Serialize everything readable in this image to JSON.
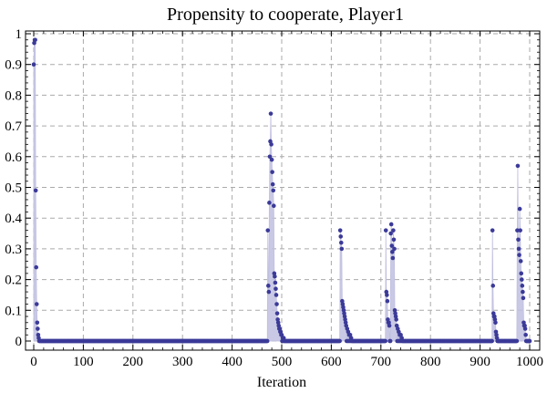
{
  "chart_data": {
    "type": "scatter",
    "title": "Propensity to cooperate, Player1",
    "xlabel": "Iteration",
    "ylabel": "",
    "xlim": [
      0,
      1000
    ],
    "ylim": [
      0,
      1
    ],
    "xticks": [
      0,
      100,
      200,
      300,
      400,
      500,
      600,
      700,
      800,
      900,
      1000
    ],
    "yticks": [
      0,
      0.1,
      0.2,
      0.3,
      0.4,
      0.5,
      0.6,
      0.7,
      0.8,
      0.9,
      1
    ],
    "grid": true,
    "filled_to_axis": true,
    "colors": {
      "points": "#3b3a98",
      "fill": "#bfbfe0",
      "grid": "#aaaaaa",
      "frame": "#000000"
    },
    "series": [
      {
        "points": [
          [
            0,
            0.9
          ],
          [
            1,
            0.97
          ],
          [
            2,
            0.98
          ],
          [
            3,
            0.98
          ],
          [
            4,
            0.49
          ],
          [
            5,
            0.24
          ],
          [
            6,
            0.12
          ],
          [
            7,
            0.06
          ],
          [
            8,
            0.04
          ],
          [
            9,
            0.02
          ],
          [
            10,
            0.01
          ],
          [
            472,
            0.36
          ],
          [
            473,
            0.18
          ],
          [
            474,
            0.16
          ],
          [
            475,
            0.45
          ],
          [
            476,
            0.6
          ],
          [
            477,
            0.65
          ],
          [
            478,
            0.74
          ],
          [
            479,
            0.64
          ],
          [
            480,
            0.59
          ],
          [
            481,
            0.55
          ],
          [
            482,
            0.51
          ],
          [
            483,
            0.49
          ],
          [
            484,
            0.44
          ],
          [
            485,
            0.22
          ],
          [
            486,
            0.21
          ],
          [
            487,
            0.19
          ],
          [
            488,
            0.17
          ],
          [
            489,
            0.15
          ],
          [
            490,
            0.12
          ],
          [
            491,
            0.09
          ],
          [
            492,
            0.07
          ],
          [
            493,
            0.06
          ],
          [
            494,
            0.05
          ],
          [
            495,
            0.04
          ],
          [
            496,
            0.04
          ],
          [
            497,
            0.03
          ],
          [
            498,
            0.03
          ],
          [
            499,
            0.02
          ],
          [
            500,
            0.02
          ],
          [
            502,
            0.01
          ],
          [
            504,
            0.01
          ],
          [
            618,
            0.36
          ],
          [
            619,
            0.34
          ],
          [
            620,
            0.32
          ],
          [
            621,
            0.3
          ],
          [
            622,
            0.13
          ],
          [
            623,
            0.12
          ],
          [
            624,
            0.11
          ],
          [
            625,
            0.1
          ],
          [
            626,
            0.09
          ],
          [
            627,
            0.08
          ],
          [
            628,
            0.07
          ],
          [
            629,
            0.06
          ],
          [
            630,
            0.05
          ],
          [
            632,
            0.04
          ],
          [
            634,
            0.03
          ],
          [
            636,
            0.02
          ],
          [
            638,
            0.02
          ],
          [
            640,
            0.01
          ],
          [
            710,
            0.36
          ],
          [
            711,
            0.16
          ],
          [
            712,
            0.15
          ],
          [
            713,
            0.13
          ],
          [
            714,
            0.07
          ],
          [
            715,
            0.06
          ],
          [
            716,
            0.06
          ],
          [
            717,
            0.05
          ],
          [
            720,
            0.35
          ],
          [
            721,
            0.38
          ],
          [
            722,
            0.31
          ],
          [
            723,
            0.29
          ],
          [
            724,
            0.27
          ],
          [
            725,
            0.36
          ],
          [
            726,
            0.33
          ],
          [
            727,
            0.3
          ],
          [
            728,
            0.1
          ],
          [
            729,
            0.09
          ],
          [
            730,
            0.08
          ],
          [
            731,
            0.07
          ],
          [
            732,
            0.05
          ],
          [
            734,
            0.04
          ],
          [
            736,
            0.03
          ],
          [
            738,
            0.02
          ],
          [
            740,
            0.02
          ],
          [
            742,
            0.01
          ],
          [
            925,
            0.36
          ],
          [
            926,
            0.18
          ],
          [
            927,
            0.09
          ],
          [
            928,
            0.08
          ],
          [
            929,
            0.08
          ],
          [
            930,
            0.07
          ],
          [
            931,
            0.06
          ],
          [
            932,
            0.03
          ],
          [
            933,
            0.02
          ],
          [
            934,
            0.01
          ],
          [
            975,
            0.36
          ],
          [
            976,
            0.57
          ],
          [
            977,
            0.33
          ],
          [
            978,
            0.3
          ],
          [
            979,
            0.28
          ],
          [
            980,
            0.43
          ],
          [
            981,
            0.36
          ],
          [
            982,
            0.26
          ],
          [
            983,
            0.22
          ],
          [
            984,
            0.2
          ],
          [
            985,
            0.18
          ],
          [
            986,
            0.16
          ],
          [
            987,
            0.14
          ],
          [
            988,
            0.06
          ],
          [
            989,
            0.05
          ],
          [
            990,
            0.05
          ],
          [
            991,
            0.04
          ],
          [
            992,
            0.02
          ]
        ],
        "baseline_value": 0.0
      }
    ]
  }
}
